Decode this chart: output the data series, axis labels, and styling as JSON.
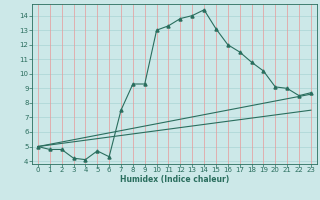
{
  "title": "",
  "xlabel": "Humidex (Indice chaleur)",
  "bg_color": "#cce8e8",
  "line_color": "#2a6e5e",
  "grid_red": "#e89898",
  "grid_cyan": "#aad4d4",
  "xlim": [
    -0.5,
    23.5
  ],
  "ylim": [
    3.8,
    14.8
  ],
  "yticks": [
    4,
    5,
    6,
    7,
    8,
    9,
    10,
    11,
    12,
    13,
    14
  ],
  "xticks": [
    0,
    1,
    2,
    3,
    4,
    5,
    6,
    7,
    8,
    9,
    10,
    11,
    12,
    13,
    14,
    15,
    16,
    17,
    18,
    19,
    20,
    21,
    22,
    23
  ],
  "line1_x": [
    0,
    1,
    2,
    3,
    4,
    5,
    6,
    7,
    8,
    9,
    10,
    11,
    12,
    13,
    14,
    15,
    16,
    17,
    18,
    19,
    20,
    21,
    22,
    23
  ],
  "line1_y": [
    5.0,
    4.8,
    4.8,
    4.2,
    4.1,
    4.7,
    4.3,
    7.5,
    9.3,
    9.3,
    13.0,
    13.3,
    13.8,
    14.0,
    14.4,
    13.1,
    12.0,
    11.5,
    10.8,
    10.2,
    9.1,
    9.0,
    8.5,
    8.7
  ],
  "line2_x": [
    0,
    23
  ],
  "line2_y": [
    5.0,
    8.6
  ],
  "line3_x": [
    0,
    23
  ],
  "line3_y": [
    5.0,
    7.5
  ],
  "tick_labelsize": 5.0,
  "xlabel_fontsize": 5.5
}
